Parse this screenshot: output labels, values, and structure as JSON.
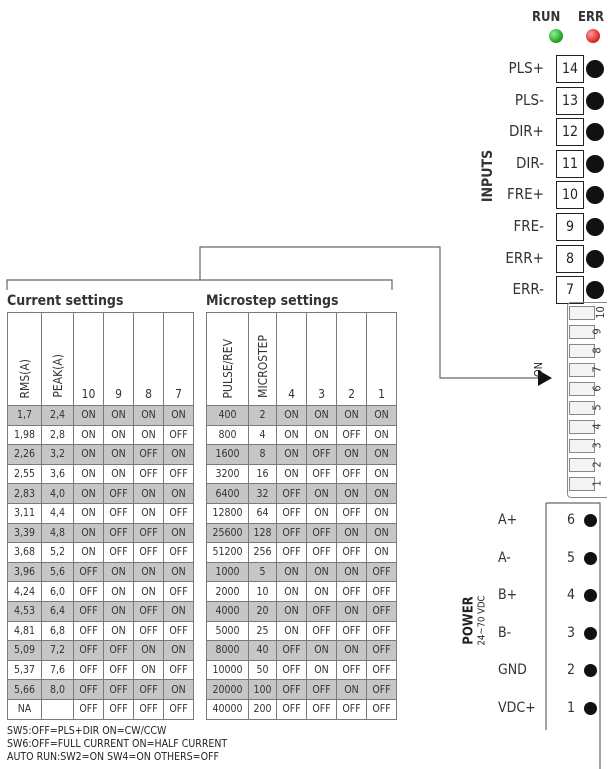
{
  "leds": [
    {
      "label": "RUN",
      "color": "#22aa22"
    },
    {
      "label": "ERR",
      "color": "#dd2222"
    }
  ],
  "inputs": {
    "title": "INPUTS",
    "pins": [
      {
        "label": "PLS+",
        "num": "14"
      },
      {
        "label": "PLS-",
        "num": "13"
      },
      {
        "label": "DIR+",
        "num": "12"
      },
      {
        "label": "DIR-",
        "num": "11"
      },
      {
        "label": "FRE+",
        "num": "10"
      },
      {
        "label": "FRE-",
        "num": "9"
      },
      {
        "label": "ERR+",
        "num": "8"
      },
      {
        "label": "ERR-",
        "num": "7"
      }
    ]
  },
  "current_settings": {
    "title": "Current settings",
    "headers": [
      "RMS(A)",
      "PEAK(A)",
      "10",
      "9",
      "8",
      "7"
    ],
    "rows": [
      [
        "1,7",
        "2,4",
        "ON",
        "ON",
        "ON",
        "ON"
      ],
      [
        "1,98",
        "2,8",
        "ON",
        "ON",
        "ON",
        "OFF"
      ],
      [
        "2,26",
        "3,2",
        "ON",
        "ON",
        "OFF",
        "ON"
      ],
      [
        "2,55",
        "3,6",
        "ON",
        "ON",
        "OFF",
        "OFF"
      ],
      [
        "2,83",
        "4,0",
        "ON",
        "OFF",
        "ON",
        "ON"
      ],
      [
        "3,11",
        "4,4",
        "ON",
        "OFF",
        "ON",
        "OFF"
      ],
      [
        "3,39",
        "4,8",
        "ON",
        "OFF",
        "OFF",
        "ON"
      ],
      [
        "3,68",
        "5,2",
        "ON",
        "OFF",
        "OFF",
        "OFF"
      ],
      [
        "3,96",
        "5,6",
        "OFF",
        "ON",
        "ON",
        "ON"
      ],
      [
        "4,24",
        "6,0",
        "OFF",
        "ON",
        "ON",
        "OFF"
      ],
      [
        "4,53",
        "6,4",
        "OFF",
        "ON",
        "OFF",
        "ON"
      ],
      [
        "4,81",
        "6,8",
        "OFF",
        "ON",
        "OFF",
        "OFF"
      ],
      [
        "5,09",
        "7,2",
        "OFF",
        "OFF",
        "ON",
        "ON"
      ],
      [
        "5,37",
        "7,6",
        "OFF",
        "OFF",
        "ON",
        "OFF"
      ],
      [
        "5,66",
        "8,0",
        "OFF",
        "OFF",
        "OFF",
        "ON"
      ],
      [
        "NA",
        "",
        "OFF",
        "OFF",
        "OFF",
        "OFF"
      ]
    ]
  },
  "microstep_settings": {
    "title": "Microstep settings",
    "headers": [
      "PULSE/REV",
      "MICROSTEP",
      "4",
      "3",
      "2",
      "1"
    ],
    "rows": [
      [
        "400",
        "2",
        "ON",
        "ON",
        "ON",
        "ON"
      ],
      [
        "800",
        "4",
        "ON",
        "ON",
        "OFF",
        "ON"
      ],
      [
        "1600",
        "8",
        "ON",
        "OFF",
        "ON",
        "ON"
      ],
      [
        "3200",
        "16",
        "ON",
        "OFF",
        "OFF",
        "ON"
      ],
      [
        "6400",
        "32",
        "OFF",
        "ON",
        "ON",
        "ON"
      ],
      [
        "12800",
        "64",
        "OFF",
        "ON",
        "OFF",
        "ON"
      ],
      [
        "25600",
        "128",
        "OFF",
        "OFF",
        "ON",
        "ON"
      ],
      [
        "51200",
        "256",
        "OFF",
        "OFF",
        "OFF",
        "ON"
      ],
      [
        "1000",
        "5",
        "ON",
        "ON",
        "ON",
        "OFF"
      ],
      [
        "2000",
        "10",
        "ON",
        "ON",
        "OFF",
        "OFF"
      ],
      [
        "4000",
        "20",
        "ON",
        "OFF",
        "ON",
        "OFF"
      ],
      [
        "5000",
        "25",
        "ON",
        "OFF",
        "OFF",
        "OFF"
      ],
      [
        "8000",
        "40",
        "OFF",
        "ON",
        "ON",
        "OFF"
      ],
      [
        "10000",
        "50",
        "OFF",
        "ON",
        "OFF",
        "OFF"
      ],
      [
        "20000",
        "100",
        "OFF",
        "OFF",
        "ON",
        "OFF"
      ],
      [
        "40000",
        "200",
        "OFF",
        "OFF",
        "OFF",
        "OFF"
      ]
    ]
  },
  "notes": [
    "SW5:OFF=PLS+DIR  ON=CW/CCW",
    "SW6:OFF=FULL CURRENT  ON=HALF CURRENT",
    "AUTO RUN:SW2=ON  SW4=ON  OTHERS=OFF"
  ],
  "dip": {
    "on_label": "ON",
    "switch_numbers": [
      "10",
      "9",
      "8",
      "7",
      "6",
      "5",
      "4",
      "3",
      "2",
      "1"
    ]
  },
  "power": {
    "title": "POWER",
    "subtitle": "24~70 VDC",
    "pins": [
      {
        "label": "A+",
        "num": "6"
      },
      {
        "label": "A-",
        "num": "5"
      },
      {
        "label": "B+",
        "num": "4"
      },
      {
        "label": "B-",
        "num": "3"
      },
      {
        "label": "GND",
        "num": "2"
      },
      {
        "label": "VDC+",
        "num": "1"
      }
    ]
  }
}
